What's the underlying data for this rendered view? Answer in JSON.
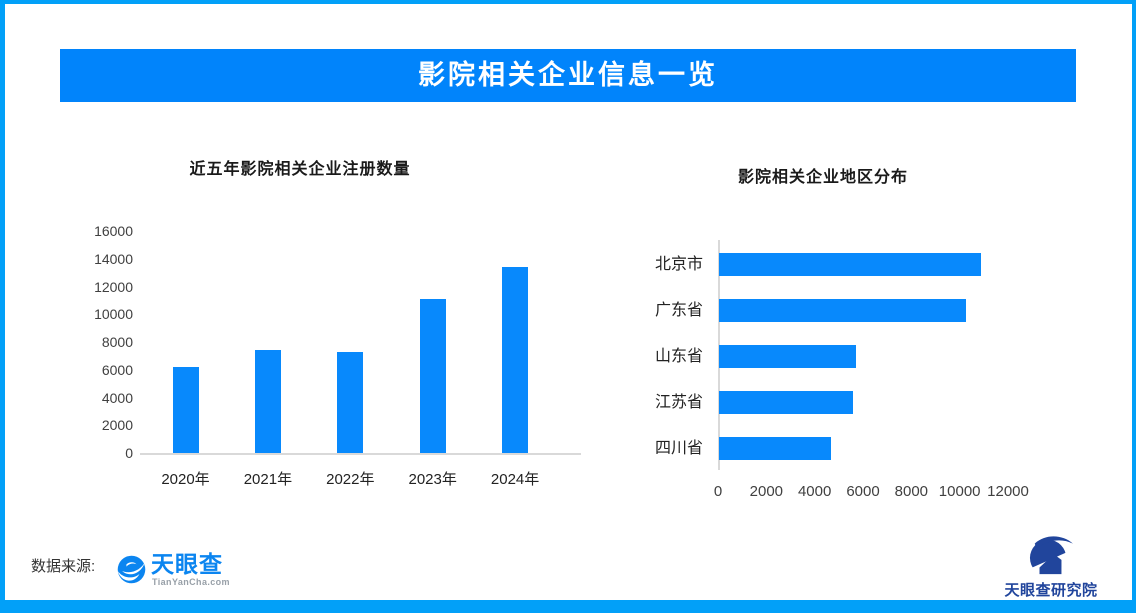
{
  "page": {
    "title": "影院相关企业信息一览"
  },
  "colors": {
    "border_blue": "#02a0f8",
    "header_blue": "#0184fb",
    "bar_blue": "#0889fc",
    "axis_gray": "#d9d9d9",
    "tianyancha_blue": "#0b85f0",
    "research_navy": "#21459c"
  },
  "chart_data": [
    {
      "type": "bar",
      "title": "近五年影院相关企业注册数量",
      "categories": [
        "2020年",
        "2021年",
        "2022年",
        "2023年",
        "2024年"
      ],
      "values": [
        6200,
        7400,
        7300,
        11100,
        13400
      ],
      "xlabel": "",
      "ylabel": "",
      "ylim": [
        0,
        16000
      ],
      "yticks": [
        0,
        2000,
        4000,
        6000,
        8000,
        10000,
        12000,
        14000,
        16000
      ],
      "grid": false,
      "legend": "none",
      "bar_color": "#0889fc"
    },
    {
      "type": "bar-horizontal",
      "title": "影院相关企业地区分布",
      "categories": [
        "北京市",
        "广东省",
        "山东省",
        "江苏省",
        "四川省"
      ],
      "values": [
        10850,
        10200,
        5670,
        5550,
        4650
      ],
      "xlabel": "",
      "ylabel": "",
      "xlim": [
        0,
        12000
      ],
      "xticks": [
        0,
        2000,
        4000,
        6000,
        8000,
        10000,
        12000
      ],
      "grid": false,
      "legend": "none",
      "bar_color": "#0889fc"
    }
  ],
  "footer": {
    "source_label": "数据来源:",
    "tianyancha_logo": {
      "icon": "eye-swirl-icon",
      "name": "天眼查",
      "domain": "TianYanCha.com"
    },
    "research_logo": {
      "icon": "swoosh-house-icon",
      "name": "天眼查研究院"
    }
  }
}
